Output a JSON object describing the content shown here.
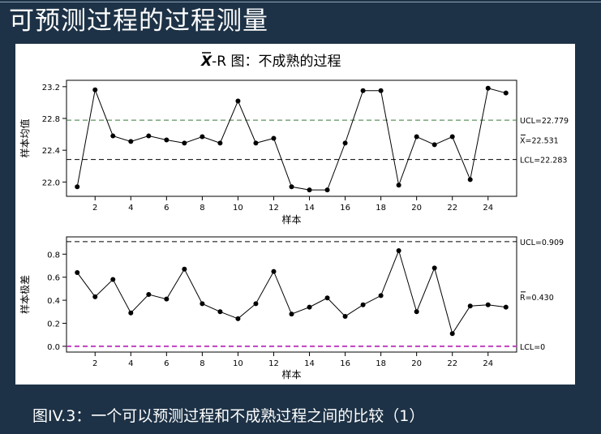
{
  "slide": {
    "title": "可预测过程的过程测量",
    "caption": "图IV.3：一个可以预测过程和不成熟过程之间的比较（1）"
  },
  "chart_title": {
    "bar_symbol": "X",
    "rest": "-R 图：不成熟的过程"
  },
  "colors": {
    "background": "#1d3246",
    "panel": "#ffffff",
    "line": "#000000",
    "ucl_top": "#3a7a3a",
    "lcl_bottom": "#c040c0"
  },
  "chart_data": [
    {
      "type": "line",
      "ylabel": "样本均值",
      "xlabel": "样本",
      "x_ticks": [
        2,
        4,
        6,
        8,
        10,
        12,
        14,
        16,
        18,
        20,
        22,
        24
      ],
      "y_ticks": [
        "22.0",
        "22.4",
        "22.8",
        "23.2"
      ],
      "ylim": [
        21.82,
        23.28
      ],
      "xlim": [
        0.4,
        25.6
      ],
      "x": [
        1,
        2,
        3,
        4,
        5,
        6,
        7,
        8,
        9,
        10,
        11,
        12,
        13,
        14,
        15,
        16,
        17,
        18,
        19,
        20,
        21,
        22,
        23,
        24,
        25
      ],
      "values": [
        21.94,
        23.16,
        22.58,
        22.51,
        22.58,
        22.53,
        22.49,
        22.57,
        22.49,
        23.02,
        22.49,
        22.55,
        21.94,
        21.9,
        21.9,
        22.49,
        23.15,
        23.15,
        21.96,
        22.57,
        22.47,
        22.57,
        22.03,
        23.18,
        23.12
      ],
      "reference_lines": [
        {
          "label": "UCL=22.779",
          "value": 22.779
        },
        {
          "label": "X=22.531",
          "value": 22.531
        },
        {
          "label": "LCL=22.283",
          "value": 22.283
        }
      ],
      "grid": false
    },
    {
      "type": "line",
      "ylabel": "样本极差",
      "xlabel": "样本",
      "x_ticks": [
        2,
        4,
        6,
        8,
        10,
        12,
        14,
        16,
        18,
        20,
        22,
        24
      ],
      "y_ticks": [
        "0.0",
        "0.2",
        "0.4",
        "0.6",
        "0.8"
      ],
      "ylim": [
        -0.05,
        0.95
      ],
      "xlim": [
        0.4,
        25.6
      ],
      "x": [
        1,
        2,
        3,
        4,
        5,
        6,
        7,
        8,
        9,
        10,
        11,
        12,
        13,
        14,
        15,
        16,
        17,
        18,
        19,
        20,
        21,
        22,
        23,
        24,
        25
      ],
      "values": [
        0.64,
        0.43,
        0.58,
        0.29,
        0.45,
        0.41,
        0.67,
        0.37,
        0.3,
        0.24,
        0.37,
        0.65,
        0.28,
        0.34,
        0.42,
        0.26,
        0.36,
        0.44,
        0.83,
        0.3,
        0.68,
        0.11,
        0.35,
        0.36,
        0.34
      ],
      "reference_lines": [
        {
          "label": "UCL=0.909",
          "value": 0.909
        },
        {
          "label": "R=0.430",
          "value": 0.43
        },
        {
          "label": "LCL=0",
          "value": 0.0
        }
      ],
      "grid": false
    }
  ]
}
